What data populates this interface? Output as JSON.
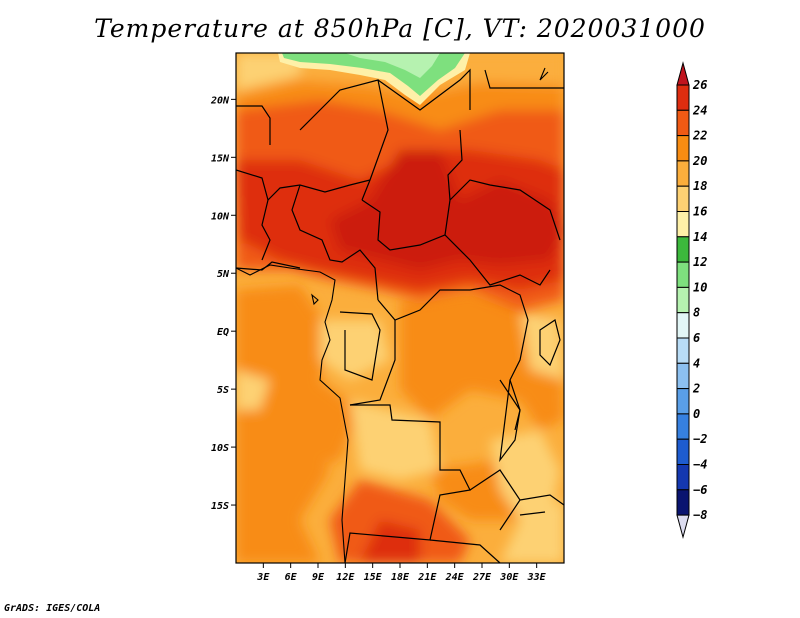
{
  "title": "Temperature at 850hPa [C], VT: 2020031000",
  "credit": "GrADS: IGES/COLA",
  "map": {
    "lon_range": [
      0,
      36
    ],
    "lat_range": [
      -20,
      24
    ],
    "lon_ticks": [
      {
        "value": 3,
        "label": "3E"
      },
      {
        "value": 6,
        "label": "6E"
      },
      {
        "value": 9,
        "label": "9E"
      },
      {
        "value": 12,
        "label": "12E"
      },
      {
        "value": 15,
        "label": "15E"
      },
      {
        "value": 18,
        "label": "18E"
      },
      {
        "value": 21,
        "label": "21E"
      },
      {
        "value": 24,
        "label": "24E"
      },
      {
        "value": 27,
        "label": "27E"
      },
      {
        "value": 30,
        "label": "30E"
      },
      {
        "value": 33,
        "label": "33E"
      }
    ],
    "lat_ticks": [
      {
        "value": 20,
        "label": "20N"
      },
      {
        "value": 15,
        "label": "15N"
      },
      {
        "value": 10,
        "label": "10N"
      },
      {
        "value": 5,
        "label": "5N"
      },
      {
        "value": 0,
        "label": "EQ"
      },
      {
        "value": -5,
        "label": "5S"
      },
      {
        "value": -10,
        "label": "10S"
      },
      {
        "value": -15,
        "label": "15S"
      }
    ]
  },
  "colorbar": {
    "levels": [
      {
        "label": "26",
        "color": "#a50f15"
      },
      {
        "label": "24",
        "color": "#de2d10"
      },
      {
        "label": "22",
        "color": "#f05a14"
      },
      {
        "label": "20",
        "color": "#f88c12"
      },
      {
        "label": "18",
        "color": "#fbae3c"
      },
      {
        "label": "16",
        "color": "#fdd173"
      },
      {
        "label": "14",
        "color": "#fef0a8"
      },
      {
        "label": "12",
        "color": "#3cb83c"
      },
      {
        "label": "10",
        "color": "#7ee07e"
      },
      {
        "label": "8",
        "color": "#b6f2b0"
      },
      {
        "label": "6",
        "color": "#e2f6f6"
      },
      {
        "label": "4",
        "color": "#b8dcf6"
      },
      {
        "label": "2",
        "color": "#8cc0f0"
      },
      {
        "label": "0",
        "color": "#5a9fe8"
      },
      {
        "label": "−2",
        "color": "#3680e0"
      },
      {
        "label": "−4",
        "color": "#1e5cd0"
      },
      {
        "label": "−6",
        "color": "#1438b0"
      },
      {
        "label": "−8",
        "color": "#0a1470"
      }
    ],
    "top_color": "#c0141e",
    "bottom_color": "#dcdcf0"
  }
}
